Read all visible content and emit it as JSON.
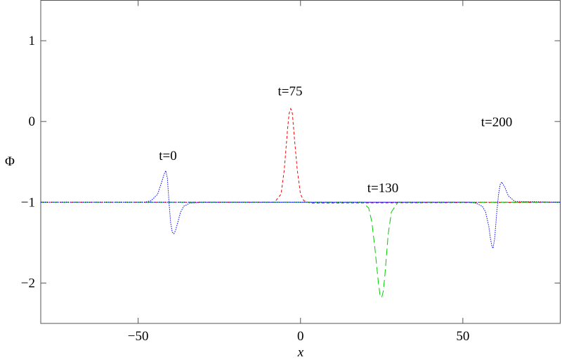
{
  "chart_data": {
    "type": "line",
    "xlabel": "x",
    "ylabel": "Φ",
    "xlim": [
      -80,
      80
    ],
    "ylim": [
      -2.5,
      1.5
    ],
    "xticks": [
      {
        "value": -50,
        "label": "−50"
      },
      0,
      50
    ],
    "yticks": [
      1,
      0,
      {
        "value": -1,
        "label": "−1"
      },
      {
        "value": -2,
        "label": "−2"
      }
    ],
    "series": [
      {
        "name": "t=0",
        "color": "#0000ff",
        "x": [
          -80,
          -48,
          -46,
          -44,
          -43,
          -42,
          -41.5,
          -41,
          -40.5,
          -40,
          -39.5,
          -39,
          -38.5,
          -38,
          -37,
          -36,
          -34,
          -30,
          80
        ],
        "values": [
          -1,
          -1,
          -0.98,
          -0.9,
          -0.78,
          -0.65,
          -0.61,
          -0.7,
          -1.0,
          -1.25,
          -1.37,
          -1.39,
          -1.35,
          -1.28,
          -1.13,
          -1.05,
          -1.01,
          -1,
          -1
        ]
      },
      {
        "name": "t=75",
        "color": "#ff0000",
        "x": [
          -80,
          -8,
          -6,
          -5,
          -4,
          -3.5,
          -3,
          -2.5,
          -2,
          -1,
          0,
          1,
          3,
          80
        ],
        "values": [
          -1,
          -1,
          -0.9,
          -0.6,
          -0.1,
          0.1,
          0.16,
          0.1,
          -0.15,
          -0.6,
          -0.9,
          -0.98,
          -1.01,
          -1
        ]
      },
      {
        "name": "t=130",
        "color": "#00cc00",
        "x": [
          -80,
          19,
          21,
          22,
          23,
          24,
          24.5,
          25,
          25.5,
          26,
          27,
          28,
          30,
          80
        ],
        "values": [
          -1,
          -1,
          -1.07,
          -1.25,
          -1.6,
          -2.0,
          -2.15,
          -2.18,
          -2.1,
          -1.9,
          -1.4,
          -1.12,
          -1.0,
          -1
        ]
      },
      {
        "name": "t=200",
        "color": "#0000ff",
        "x": [
          -80,
          52,
          54,
          56,
          57,
          58,
          58.5,
          59,
          59.3,
          59.8,
          60.5,
          61,
          61.5,
          62,
          63,
          64,
          66,
          80
        ],
        "values": [
          -1,
          -1,
          -1.01,
          -1.05,
          -1.12,
          -1.3,
          -1.45,
          -1.55,
          -1.57,
          -1.45,
          -1.1,
          -0.9,
          -0.78,
          -0.75,
          -0.82,
          -0.92,
          -0.99,
          -1
        ]
      }
    ]
  }
}
